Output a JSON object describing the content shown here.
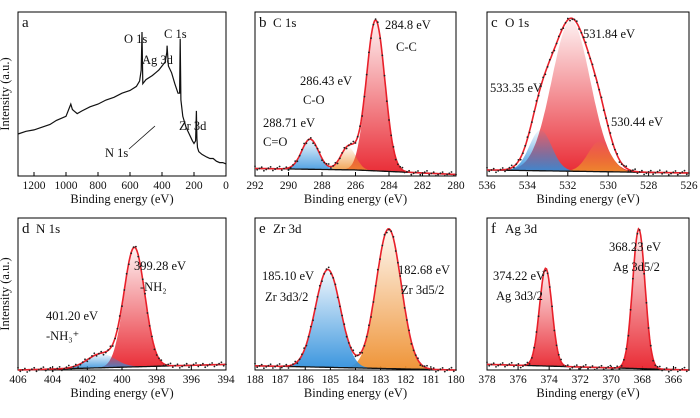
{
  "colors": {
    "envelope": "#e8202a",
    "dots": "#222222",
    "baseline": "#111111",
    "red_peak": "#e8202a",
    "blue_peak": "#2f8fdc",
    "orange_peak": "#ee8f2e",
    "axis": "#000000"
  },
  "chart_data": [
    {
      "type": "line",
      "panel_letter": "a",
      "title": "",
      "xlabel": "Binding energy (eV)",
      "ylabel": "Intensity (a.u.)",
      "xlim": [
        1300,
        0
      ],
      "x_reversed": true,
      "xticks": [
        1200,
        1000,
        800,
        600,
        400,
        200,
        0
      ],
      "series": [
        {
          "x": [
            1300,
            1250,
            1200,
            1150,
            1100,
            1060,
            1000,
            970,
            960,
            950,
            930,
            900,
            850,
            800,
            750,
            700,
            650,
            600,
            560,
            540,
            530,
            525,
            520,
            500,
            460,
            440,
            420,
            400,
            380,
            370,
            368,
            365,
            360,
            340,
            320,
            300,
            290,
            286,
            282,
            270,
            250,
            230,
            210,
            200,
            190,
            185,
            182,
            178,
            170,
            150,
            120,
            100,
            80,
            60,
            40,
            20,
            0
          ],
          "y": [
            0.25,
            0.27,
            0.28,
            0.3,
            0.32,
            0.35,
            0.38,
            0.47,
            0.43,
            0.42,
            0.4,
            0.42,
            0.45,
            0.47,
            0.5,
            0.52,
            0.55,
            0.57,
            0.6,
            0.64,
            0.72,
            1.0,
            0.62,
            0.65,
            0.68,
            0.7,
            0.72,
            0.75,
            0.78,
            0.85,
            0.9,
            0.84,
            0.75,
            0.7,
            0.62,
            0.55,
            0.55,
            0.95,
            0.5,
            0.38,
            0.3,
            0.25,
            0.2,
            0.18,
            0.2,
            0.42,
            0.22,
            0.15,
            0.12,
            0.1,
            0.08,
            0.07,
            0.07,
            0.05,
            0.04,
            0.04,
            0.03
          ]
        }
      ],
      "annotations": [
        {
          "text": "O 1s",
          "x": 530
        },
        {
          "text": "C 1s",
          "x": 285
        },
        {
          "text": "Ag 3d",
          "x": 368
        },
        {
          "text": "Zr 3d",
          "x": 182
        },
        {
          "text": "N 1s",
          "x": 400
        }
      ]
    },
    {
      "type": "line",
      "panel_letter": "b",
      "title": "C 1s",
      "xlabel": "Binding energy (eV)",
      "ylabel": "",
      "xlim": [
        292,
        280
      ],
      "x_reversed": true,
      "xticks": [
        292,
        290,
        288,
        286,
        284,
        282,
        280
      ],
      "peaks": [
        {
          "center": 284.8,
          "height": 1.0,
          "width": 0.55,
          "color": "red",
          "labels": [
            "284.8 eV",
            "C-C"
          ]
        },
        {
          "center": 286.43,
          "height": 0.15,
          "width": 0.45,
          "color": "orange",
          "labels": [
            "286.43 eV",
            "C-O"
          ]
        },
        {
          "center": 288.71,
          "height": 0.2,
          "width": 0.5,
          "color": "blue",
          "labels": [
            "288.71 eV",
            "C=O"
          ]
        }
      ],
      "background": [
        [
          292,
          0.05
        ],
        [
          286,
          0.04
        ],
        [
          280,
          0.01
        ]
      ]
    },
    {
      "type": "line",
      "panel_letter": "c",
      "title": "O 1s",
      "xlabel": "Binding energy (eV)",
      "ylabel": "",
      "xlim": [
        536,
        526
      ],
      "x_reversed": true,
      "xticks": [
        536,
        534,
        532,
        530,
        528,
        526
      ],
      "peaks": [
        {
          "center": 531.84,
          "height": 1.0,
          "width": 0.95,
          "color": "red",
          "labels": [
            "531.84 eV"
          ]
        },
        {
          "center": 533.35,
          "height": 0.27,
          "width": 0.55,
          "color": "blue",
          "labels": [
            "533.35 eV"
          ]
        },
        {
          "center": 530.44,
          "height": 0.2,
          "width": 0.55,
          "color": "orange",
          "labels": [
            "530.44 eV"
          ]
        }
      ],
      "background": [
        [
          536,
          0.04
        ],
        [
          526,
          0.02
        ]
      ]
    },
    {
      "type": "line",
      "panel_letter": "d",
      "title": "N 1s",
      "xlabel": "Binding energy (eV)",
      "ylabel": "Intensity (a.u.)",
      "xlim": [
        406,
        394
      ],
      "x_reversed": true,
      "xticks": [
        406,
        404,
        402,
        400,
        398,
        396,
        394
      ],
      "peaks": [
        {
          "center": 399.28,
          "height": 0.85,
          "width": 0.6,
          "color": "red",
          "labels": [
            "399.28 eV",
            "-NH₂"
          ]
        },
        {
          "center": 401.2,
          "height": 0.1,
          "width": 0.8,
          "color": "blue",
          "labels": [
            "401.20 eV",
            "-NH₃⁺"
          ]
        }
      ],
      "background": [
        [
          406,
          0.0
        ],
        [
          394,
          0.04
        ]
      ]
    },
    {
      "type": "line",
      "panel_letter": "e",
      "title": "Zr 3d",
      "xlabel": "Binding energy (eV)",
      "ylabel": "",
      "xlim": [
        188,
        180
      ],
      "x_reversed": true,
      "xticks": [
        188,
        187,
        186,
        185,
        184,
        183,
        182,
        181,
        180
      ],
      "peaks": [
        {
          "center": 182.68,
          "height": 1.0,
          "width": 0.5,
          "color": "orange",
          "labels": [
            "182.68 eV",
            "Zr 3d5/2"
          ]
        },
        {
          "center": 185.1,
          "height": 0.7,
          "width": 0.5,
          "color": "blue",
          "labels": [
            "185.10 eV",
            "Zr 3d3/2"
          ]
        }
      ],
      "background": [
        [
          188,
          0.03
        ],
        [
          180,
          0.0
        ]
      ]
    },
    {
      "type": "line",
      "panel_letter": "f",
      "title": "Ag 3d",
      "xlabel": "Binding energy (eV)",
      "ylabel": "",
      "xlim": [
        378,
        365
      ],
      "x_reversed": true,
      "xticks": [
        378,
        376,
        374,
        372,
        370,
        368,
        366
      ],
      "peaks": [
        {
          "center": 368.23,
          "height": 1.0,
          "width": 0.4,
          "color": "red",
          "labels": [
            "368.23 eV",
            "Ag 3d5/2"
          ]
        },
        {
          "center": 374.22,
          "height": 0.7,
          "width": 0.4,
          "color": "red",
          "labels": [
            "374.22 eV",
            "Ag 3d3/2"
          ]
        }
      ],
      "background": [
        [
          378,
          0.04
        ],
        [
          365,
          0.0
        ]
      ]
    }
  ]
}
